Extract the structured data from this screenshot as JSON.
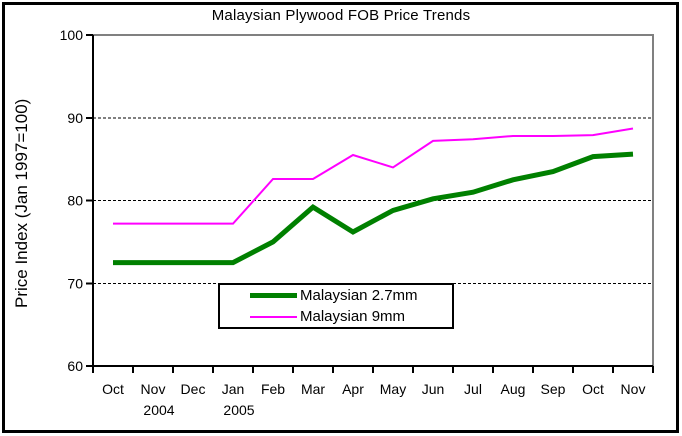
{
  "chart_data": {
    "type": "line",
    "title": "Malaysian Plywood FOB Price Trends",
    "ylabel": "Price Index (Jan 1997=100)",
    "xlabel": "",
    "categories": [
      "Oct",
      "Nov",
      "Dec",
      "Jan",
      "Feb",
      "Mar",
      "Apr",
      "May",
      "Jun",
      "Jul",
      "Aug",
      "Sep",
      "Oct",
      "Nov"
    ],
    "year_labels": [
      {
        "text": "2004",
        "index": 1
      },
      {
        "text": "2005",
        "index": 3
      }
    ],
    "series": [
      {
        "name": "Malaysian 2.7mm",
        "color": "#008000",
        "stroke_width": 5,
        "values": [
          72.5,
          72.5,
          72.5,
          72.5,
          75.0,
          79.2,
          76.2,
          78.8,
          80.2,
          81.0,
          82.5,
          83.5,
          85.3,
          85.6
        ]
      },
      {
        "name": "Malaysian 9mm",
        "color": "#FF00FF",
        "stroke_width": 2,
        "values": [
          77.2,
          77.2,
          77.2,
          77.2,
          82.6,
          82.6,
          85.5,
          84.0,
          87.2,
          87.4,
          87.8,
          87.8,
          87.9,
          88.7
        ]
      }
    ],
    "ylim": [
      60,
      100
    ],
    "yticks": [
      60,
      70,
      80,
      90,
      100
    ],
    "gridline_values": [
      70,
      80,
      90
    ],
    "grid": true,
    "legend_position": "inside-bottom-center",
    "colors": {
      "plot_border": "#808080",
      "axis": "#000000",
      "gridline": "#000000",
      "background": "#ffffff"
    }
  }
}
